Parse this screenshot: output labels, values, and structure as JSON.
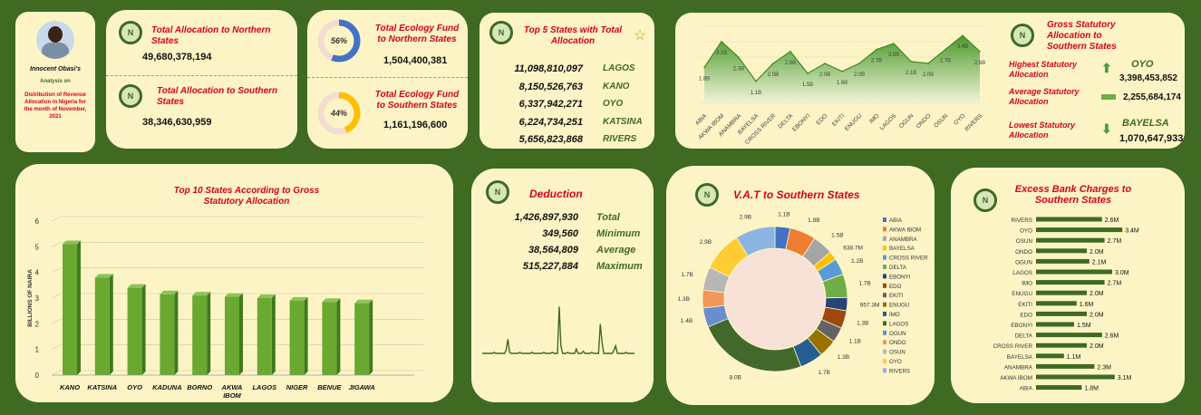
{
  "profile": {
    "name": "Innocent Obasi's",
    "analysis_on": "Analysis on",
    "description": "Distribution of Revenue Allocation in Nigeria for the month of November, 2021"
  },
  "allocation_cards": {
    "north_title": "Total Allocation to Northern States",
    "north_value": "49,680,378,194",
    "south_title": "Total Allocation to Southern States",
    "south_value": "38,346,630,959"
  },
  "ecology": {
    "north_title": "Total Ecology Fund to Northern States",
    "north_value": "1,504,400,381",
    "north_pct": "56%",
    "north_fraction": 0.56,
    "south_title": "Total Ecology Fund to Southern States",
    "south_value": "1,161,196,600",
    "south_pct": "44%",
    "south_fraction": 0.44
  },
  "top5": {
    "title": "Top 5 States with Total Allocation",
    "rows": [
      {
        "value": "11,098,810,097",
        "state": "LAGOS"
      },
      {
        "value": "8,150,526,763",
        "state": "KANO"
      },
      {
        "value": "6,337,942,271",
        "state": "OYO"
      },
      {
        "value": "6,224,734,251",
        "state": "KATSINA"
      },
      {
        "value": "5,656,823,868",
        "state": "RIVERS"
      }
    ]
  },
  "southern_summary": {
    "title": "Gross Statutory Allocation to Southern States",
    "highest_label": "Highest Statutory Allocation",
    "highest_state": "OYO",
    "highest_value": "3,398,453,852",
    "average_label": "Average Statutory Allocation",
    "average_value": "2,255,684,174",
    "lowest_label": "Lowest Statutory Allocation",
    "lowest_state": "BAYELSA",
    "lowest_value": "1,070,647,933"
  },
  "deduction": {
    "title": "Deduction",
    "rows": [
      {
        "value": "1,426,897,930",
        "label": "Total"
      },
      {
        "value": "349,560",
        "label": "Minimum"
      },
      {
        "value": "38,564,809",
        "label": "Average"
      },
      {
        "value": "515,227,884",
        "label": "Maximum"
      }
    ]
  },
  "chart_data": [
    {
      "type": "area",
      "categories": [
        "ABIA",
        "AKWA IBOM",
        "ANAMBRA",
        "BAYELSA",
        "CROSS RIVER",
        "DELTA",
        "EBONYI",
        "EDO",
        "EKITI",
        "ENUGU",
        "IMO",
        "LAGOS",
        "OGUN",
        "ONDO",
        "OSUN",
        "OYO",
        "RIVERS"
      ],
      "values": [
        1.8,
        3.1,
        2.3,
        1.1,
        2.0,
        2.6,
        1.5,
        2.0,
        1.6,
        2.0,
        2.7,
        3.0,
        2.1,
        2.0,
        2.7,
        3.4,
        2.6
      ],
      "data_labels": [
        "1.8B",
        "3.1B",
        "2.3B",
        "1.1B",
        "2.0B",
        "2.6B",
        "1.5B",
        "2.0B",
        "1.6B",
        "2.0B",
        "2.7B",
        "3.0B",
        "2.1B",
        "2.0B",
        "2.7B",
        "3.4B",
        "2.6B"
      ],
      "grid": true
    },
    {
      "type": "bar",
      "title": "Top 10 States According to Gross Statutory Allocation",
      "categories": [
        "KANO",
        "KATSINA",
        "OYO",
        "KADUNA",
        "BORNO",
        "AKWA IBOM",
        "LAGOS",
        "NIGER",
        "BENUE",
        "JIGAWA"
      ],
      "values": [
        5.1,
        3.8,
        3.4,
        3.15,
        3.1,
        3.05,
        3.0,
        2.9,
        2.85,
        2.8
      ],
      "ylabel": "BILLIONS OF NAIRA",
      "ylim": [
        0,
        6
      ],
      "yticks": [
        "0",
        "1",
        "2",
        "3",
        "4",
        "5",
        "6"
      ],
      "grid": true
    },
    {
      "type": "line",
      "series": [
        {
          "values": [
            0.5,
            0.5,
            0.5,
            0.5,
            0.5,
            0.5,
            0.5,
            0.6,
            0.5,
            0.5,
            0.5,
            0.5,
            0.5,
            0.5,
            0.8,
            1.8,
            0.6,
            0.5,
            0.5,
            0.5,
            0.5,
            0.5,
            0.6,
            0.5,
            0.5,
            0.5,
            0.5,
            0.5,
            0.5,
            0.6,
            0.5,
            0.5,
            0.5,
            0.5,
            0.5,
            0.5,
            0.6,
            0.5,
            0.5,
            0.5,
            0.5,
            0.6,
            0.5,
            0.5,
            0.5,
            4.8,
            1.2,
            0.5,
            0.5,
            0.5,
            0.6,
            0.5,
            0.5,
            0.5,
            0.5,
            0.9,
            0.5,
            0.5,
            0.5,
            0.7,
            0.5,
            0.5,
            0.5,
            0.5,
            0.6,
            0.5,
            0.5,
            0.5,
            0.5,
            3.2,
            1.6,
            0.5,
            0.5,
            0.5,
            0.5,
            0.5,
            0.5,
            0.8,
            1.2,
            0.5,
            0.5,
            0.5,
            0.5,
            0.5,
            0.6,
            0.5,
            0.5,
            0.5,
            0.5,
            0.5
          ]
        }
      ]
    },
    {
      "type": "pie",
      "title": "V.A.T to Southern States",
      "categories": [
        "ABIA",
        "AKWA IBOM",
        "ANAMBRA",
        "BAYELSA",
        "CROSS RIVER",
        "DELTA",
        "EBONYI",
        "EDO",
        "EKITI",
        "ENUGU",
        "IMO",
        "LAGOS",
        "OGUN",
        "ONDO",
        "OSUN",
        "OYO",
        "RIVERS"
      ],
      "values": [
        1.1,
        1.9,
        1.5,
        0.6387,
        1.2,
        1.7,
        0.9573,
        1.3,
        1.1,
        1.3,
        1.7,
        8.0,
        1.4,
        1.3,
        1.7,
        2.9,
        2.9
      ],
      "labels": [
        "1.1B",
        "1.9B",
        "1.5B",
        "638.7M",
        "1.2B",
        "1.7B",
        "957.3M",
        "1.3B",
        "1.1B",
        "1.3B",
        "1.7B",
        "8.0B",
        "1.4B",
        "1.3B",
        "1.7B",
        "2.9B",
        "2.9B"
      ],
      "colors": [
        "#4472c4",
        "#ed7d31",
        "#a5a5a5",
        "#ffc000",
        "#5b9bd5",
        "#70ad47",
        "#264478",
        "#9e480e",
        "#636363",
        "#997300",
        "#255e91",
        "#43682b",
        "#698ed0",
        "#f1975a",
        "#b7b7b7",
        "#ffcd33",
        "#8cb4e2"
      ],
      "legend": "right"
    },
    {
      "type": "bar",
      "title": "Excess Bank Charges to Southern States",
      "orientation": "horizontal",
      "categories": [
        "RIVERS",
        "OYO",
        "OSUN",
        "ONDO",
        "OGUN",
        "LAGOS",
        "IMO",
        "ENUGU",
        "EKITI",
        "EDO",
        "EBONYI",
        "DELTA",
        "CROSS RIVER",
        "BAYELSA",
        "ANAMBRA",
        "AKWA IBOM",
        "ABIA"
      ],
      "values": [
        2.6,
        3.4,
        2.7,
        2.0,
        2.1,
        3.0,
        2.7,
        2.0,
        1.6,
        2.0,
        1.5,
        2.6,
        2.0,
        1.1,
        2.3,
        3.1,
        1.8
      ],
      "labels": [
        "2.6M",
        "3.4M",
        "2.7M",
        "2.0M",
        "2.1M",
        "3.0M",
        "2.7M",
        "2.0M",
        "1.6M",
        "2.0M",
        "1.5M",
        "2.6M",
        "2.0M",
        "1.1M",
        "2.3M",
        "3.1M",
        "1.8M"
      ]
    }
  ],
  "colors": {
    "background": "#3f6a22",
    "card": "#fdf4c6",
    "title_red": "#d8001e",
    "bar_green": "#6aa832",
    "dark_green": "#3f6a22"
  },
  "icons": {
    "logo": "N",
    "star": "star-icon",
    "up": "arrow-up-icon",
    "down": "arrow-down-icon",
    "avg": "dash-icon"
  }
}
